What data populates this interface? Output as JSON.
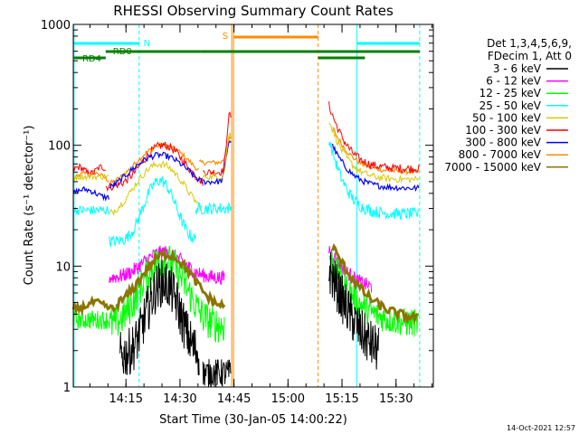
{
  "chart_data": {
    "type": "line",
    "title": "RHESSI Observing Summary Count Rates",
    "xlabel": "Start Time (30-Jan-05 14:00:22)",
    "ylabel": "Count Rate (s⁻¹ detector⁻¹)",
    "ylog": true,
    "ylim": [
      1,
      1000
    ],
    "xlim_minutes": [
      0,
      100
    ],
    "x_ticks": [
      "14:15",
      "14:30",
      "14:45",
      "15:00",
      "15:15",
      "15:30"
    ],
    "y_ticks": [
      "1",
      "10",
      "100",
      "1000"
    ],
    "legend_header": [
      "Det 1,3,4,5,6,9,",
      "FDecim 1, Att 0"
    ],
    "legend_position": "right",
    "footer": "14-Oct-2021 12:57",
    "series": [
      {
        "name": "3 - 6 keV",
        "color": "#000000"
      },
      {
        "name": "6 - 12 keV",
        "color": "#ff00ff"
      },
      {
        "name": "12 - 25 keV",
        "color": "#00ff00"
      },
      {
        "name": "25 - 50 keV",
        "color": "#00ffff"
      },
      {
        "name": "50 - 100 keV",
        "color": "#d8c800"
      },
      {
        "name": "100 - 300 keV",
        "color": "#ff0000"
      },
      {
        "name": "300 - 800 keV",
        "color": "#0000ff"
      },
      {
        "name": "800 - 7000 keV",
        "color": "#ff8c00"
      },
      {
        "name": "7000 - 15000 keV",
        "color": "#8b7500"
      }
    ],
    "flags": [
      {
        "label": "N",
        "color": "#00ffff",
        "level": 0
      },
      {
        "label": "RD0",
        "color": "#008000",
        "level": 1
      },
      {
        "label": "RD4",
        "color": "#008000",
        "level": 2
      },
      {
        "label": "S",
        "color": "#ff8c00",
        "level": 3
      }
    ]
  }
}
